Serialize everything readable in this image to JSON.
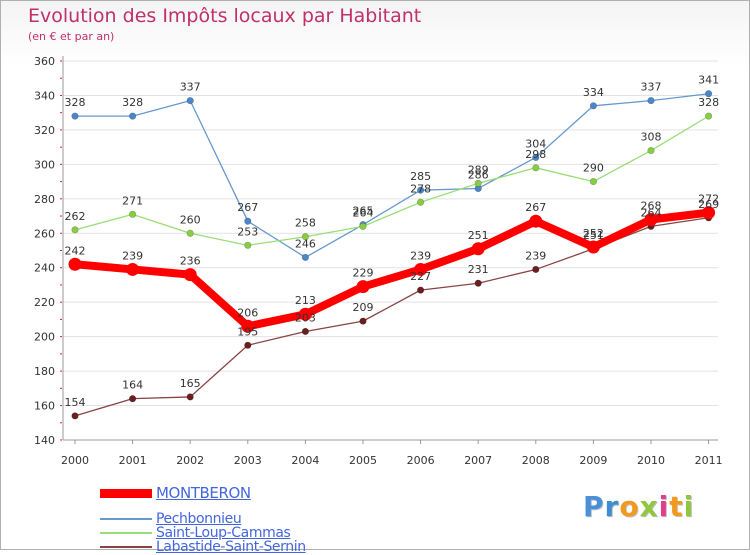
{
  "chart_data": {
    "type": "line",
    "title": "Evolution des Impôts locaux par Habitant",
    "subtitle": "(en € et par an)",
    "categories": [
      "2000",
      "2001",
      "2002",
      "2003",
      "2004",
      "2005",
      "2006",
      "2007",
      "2008",
      "2009",
      "2010",
      "2011"
    ],
    "ylim": [
      140,
      360
    ],
    "yticks": [
      140,
      160,
      180,
      200,
      220,
      240,
      260,
      280,
      300,
      320,
      340,
      360
    ],
    "grid": true,
    "legend_position": "bottom-left",
    "series": [
      {
        "name": "MONTBERON",
        "color": "#ff0000",
        "emphasis": true,
        "values": [
          242,
          239,
          236,
          206,
          213,
          229,
          239,
          251,
          267,
          252,
          268,
          272
        ]
      },
      {
        "name": "Pechbonnieu",
        "color": "#6699cc",
        "marker": "#4a86c8",
        "values": [
          328,
          328,
          337,
          267,
          246,
          265,
          285,
          286,
          304,
          334,
          337,
          341
        ]
      },
      {
        "name": "Saint-Loup-Cammas",
        "color": "#99dd77",
        "marker": "#88cc44",
        "values": [
          262,
          271,
          260,
          253,
          258,
          264,
          278,
          289,
          298,
          290,
          308,
          328
        ]
      },
      {
        "name": "Labastide-Saint-Sernin",
        "color": "#884444",
        "marker": "#6a1f1f",
        "values": [
          154,
          164,
          165,
          195,
          203,
          209,
          227,
          231,
          239,
          251,
          264,
          269
        ]
      }
    ]
  },
  "logo": {
    "letters": [
      "P",
      "r",
      "o",
      "x",
      "i",
      "t",
      "i"
    ],
    "colors": [
      "#4a90d9",
      "#3b8fd0",
      "#f29a1f",
      "#8fc83c",
      "#e23c8c",
      "#f29a1f",
      "#8fc83c"
    ]
  }
}
